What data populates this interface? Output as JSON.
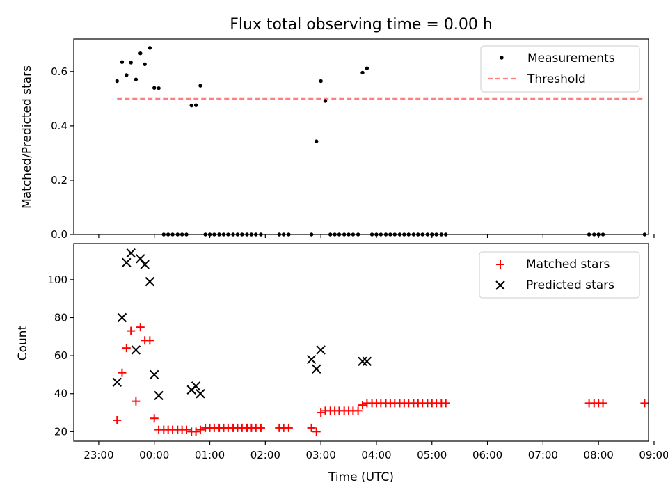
{
  "chart_data": [
    {
      "type": "scatter",
      "title": "Flux total observing time = 0.00 h",
      "xlabel": "",
      "ylabel": "Matched/Predicted stars",
      "xlim": [
        -0.45,
        9.9
      ],
      "ylim": [
        0,
        0.72
      ],
      "yticks": [
        0.0,
        0.2,
        0.4,
        0.6
      ],
      "ytick_labels": [
        "0.0",
        "0.2",
        "0.4",
        "0.6"
      ],
      "grid": false,
      "legend": {
        "position": "top-right",
        "entries": [
          "Measurements",
          "Threshold"
        ]
      },
      "series": [
        {
          "name": "Measurements",
          "style": "dot",
          "color": "#000000",
          "x": [
            0.33,
            0.42,
            0.5,
            0.58,
            0.67,
            0.75,
            0.83,
            0.92,
            1.0,
            1.08,
            1.17,
            1.25,
            1.33,
            1.42,
            1.5,
            1.58,
            1.67,
            1.75,
            1.83,
            1.92,
            2.0,
            2.08,
            2.17,
            2.25,
            2.33,
            2.42,
            2.5,
            2.58,
            2.67,
            2.75,
            2.83,
            2.92,
            3.25,
            3.33,
            3.42,
            3.83,
            3.92,
            4.0,
            4.08,
            4.17,
            4.25,
            4.33,
            4.42,
            4.5,
            4.58,
            4.67,
            4.75,
            4.83,
            4.92,
            5.0,
            5.08,
            5.17,
            5.25,
            5.33,
            5.42,
            5.5,
            5.58,
            5.67,
            5.75,
            5.83,
            5.92,
            6.0,
            6.08,
            6.17,
            6.25,
            8.83,
            8.92,
            9.0,
            9.08,
            9.83
          ],
          "y": [
            0.565,
            0.635,
            0.587,
            0.633,
            0.571,
            0.667,
            0.627,
            0.687,
            0.54,
            0.539,
            0.0,
            0.0,
            0.0,
            0.0,
            0.0,
            0.0,
            0.475,
            0.476,
            0.548,
            0.0,
            0.0,
            0.0,
            0.0,
            0.0,
            0.0,
            0.0,
            0.0,
            0.0,
            0.0,
            0.0,
            0.0,
            0.0,
            0.0,
            0.0,
            0.0,
            0.0,
            0.343,
            0.565,
            0.492,
            0.0,
            0.0,
            0.0,
            0.0,
            0.0,
            0.0,
            0.0,
            0.596,
            0.612,
            0.0,
            0.0,
            0.0,
            0.0,
            0.0,
            0.0,
            0.0,
            0.0,
            0.0,
            0.0,
            0.0,
            0.0,
            0.0,
            0.0,
            0.0,
            0.0,
            0.0,
            0.0,
            0.0,
            0.0,
            0.0,
            0.0
          ]
        },
        {
          "name": "Threshold",
          "style": "dashed-line",
          "color": "#ff7f7f",
          "x": [
            0.33,
            9.83
          ],
          "y": [
            0.5,
            0.5
          ]
        }
      ]
    },
    {
      "type": "scatter",
      "title": "",
      "xlabel": "Time (UTC)",
      "ylabel": "Count",
      "xlim": [
        -0.45,
        9.9
      ],
      "ylim": [
        15,
        119
      ],
      "yticks": [
        20,
        40,
        60,
        80,
        100
      ],
      "ytick_labels": [
        "20",
        "40",
        "60",
        "80",
        "100"
      ],
      "xticks": [
        0,
        1,
        2,
        3,
        4,
        5,
        6,
        7,
        8,
        9,
        10
      ],
      "xtick_labels": [
        "23:00",
        "00:00",
        "01:00",
        "02:00",
        "03:00",
        "04:00",
        "05:00",
        "06:00",
        "07:00",
        "08:00",
        "09:00"
      ],
      "grid": false,
      "legend": {
        "position": "top-right",
        "entries": [
          "Matched stars",
          "Predicted stars"
        ]
      },
      "series": [
        {
          "name": "Matched stars",
          "marker": "+",
          "color": "#ff0000",
          "x": [
            0.33,
            0.42,
            0.5,
            0.58,
            0.67,
            0.75,
            0.83,
            0.92,
            1.0,
            1.08,
            1.17,
            1.25,
            1.33,
            1.42,
            1.5,
            1.58,
            1.67,
            1.75,
            1.83,
            1.92,
            2.0,
            2.08,
            2.17,
            2.25,
            2.33,
            2.42,
            2.5,
            2.58,
            2.67,
            2.75,
            2.83,
            2.92,
            3.25,
            3.33,
            3.42,
            3.83,
            3.92,
            4.0,
            4.08,
            4.17,
            4.25,
            4.33,
            4.42,
            4.5,
            4.58,
            4.67,
            4.75,
            4.83,
            4.92,
            5.0,
            5.08,
            5.17,
            5.25,
            5.33,
            5.42,
            5.5,
            5.58,
            5.67,
            5.75,
            5.83,
            5.92,
            6.0,
            6.08,
            6.17,
            6.25,
            8.83,
            8.92,
            9.0,
            9.08,
            9.83
          ],
          "y": [
            26,
            51,
            64,
            73,
            36,
            75,
            68,
            68,
            27,
            21,
            21,
            21,
            21,
            21,
            21,
            21,
            20,
            20,
            21,
            22,
            22,
            22,
            22,
            22,
            22,
            22,
            22,
            22,
            22,
            22,
            22,
            22,
            22,
            22,
            22,
            22,
            20,
            30,
            31,
            31,
            31,
            31,
            31,
            31,
            31,
            31,
            34,
            35,
            35,
            35,
            35,
            35,
            35,
            35,
            35,
            35,
            35,
            35,
            35,
            35,
            35,
            35,
            35,
            35,
            35,
            35,
            35,
            35,
            35,
            35
          ]
        },
        {
          "name": "Predicted stars",
          "marker": "x",
          "color": "#000000",
          "x": [
            0.33,
            0.42,
            0.5,
            0.58,
            0.67,
            0.75,
            0.83,
            0.92,
            1.0,
            1.08,
            1.67,
            1.75,
            1.83,
            3.83,
            3.92,
            4.0,
            4.75,
            4.83
          ],
          "y": [
            46,
            80,
            109,
            114,
            63,
            111,
            108,
            99,
            50,
            39,
            42,
            44,
            40,
            58,
            53,
            63,
            57,
            57
          ]
        }
      ]
    }
  ]
}
